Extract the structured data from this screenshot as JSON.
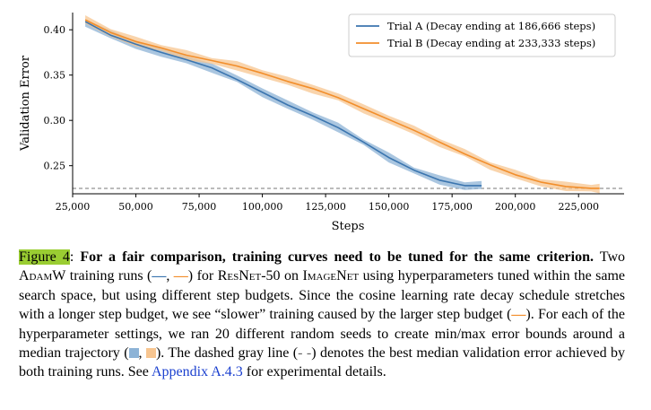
{
  "chart_data": {
    "type": "line",
    "xlabel": "Steps",
    "ylabel": "Validation Error",
    "xlim": [
      25000,
      243000
    ],
    "ylim": [
      0.219,
      0.419
    ],
    "x_ticks": [
      25000,
      50000,
      75000,
      100000,
      125000,
      150000,
      175000,
      200000,
      225000
    ],
    "x_tick_labels": [
      "25,000",
      "50,000",
      "75,000",
      "100,000",
      "125,000",
      "150,000",
      "175,000",
      "200,000",
      "225,000"
    ],
    "y_ticks": [
      0.25,
      0.3,
      0.35,
      0.4
    ],
    "y_tick_labels": [
      "0.25",
      "0.30",
      "0.35",
      "0.40"
    ],
    "grid": false,
    "legend_position": "top-right",
    "reference_line": {
      "y": 0.225,
      "style": "dashed",
      "color": "#777777"
    },
    "series": [
      {
        "name": "Trial A (Decay ending at 186,666 steps)",
        "color": "#3b75af",
        "band_color": "#8db3d6",
        "x": [
          30000,
          40000,
          50000,
          60000,
          70000,
          80000,
          90000,
          100000,
          110000,
          120000,
          130000,
          140000,
          150000,
          160000,
          170000,
          180000,
          186666
        ],
        "y": [
          0.409,
          0.394,
          0.384,
          0.375,
          0.367,
          0.358,
          0.345,
          0.331,
          0.317,
          0.305,
          0.292,
          0.276,
          0.259,
          0.245,
          0.234,
          0.228,
          0.228
        ]
      },
      {
        "name": "Trial B (Decay ending at 233,333 steps)",
        "color": "#f28e2b",
        "band_color": "#f7c590",
        "x": [
          30000,
          40000,
          50000,
          60000,
          70000,
          80000,
          90000,
          100000,
          110000,
          120000,
          130000,
          140000,
          150000,
          160000,
          170000,
          180000,
          190000,
          200000,
          210000,
          220000,
          230000,
          233333
        ],
        "y": [
          0.411,
          0.397,
          0.387,
          0.38,
          0.372,
          0.366,
          0.36,
          0.352,
          0.343,
          0.335,
          0.325,
          0.313,
          0.301,
          0.289,
          0.276,
          0.263,
          0.251,
          0.24,
          0.232,
          0.227,
          0.225,
          0.225
        ]
      }
    ]
  },
  "caption": {
    "figure_label": "Figure 4",
    "colon": ":",
    "bold_text": "For a fair comparison, training curves need to be tuned for the same criterion.",
    "t1": "Two",
    "adamw": "AdamW",
    "t2": "training runs (",
    "dash": "—",
    "comma": ",",
    "t3": ") for",
    "resnet": "ResNet",
    "t4": "-50 on",
    "imagenet": "ImageNet",
    "t5": "using hyperparameters tuned within the same search space, but using different step budgets. Since the cosine learning rate decay schedule stretches with a longer step budget, we see “slower” training caused by the larger step budget (",
    "t6": "). For each of the hyperparameter settings, we ran 20 different random seeds to create min/max error bounds around a median trajectory (",
    "t7": "). The dashed gray line (",
    "dashed_symbol": "- -",
    "t8": ") denotes the best median validation error achieved by both training runs. See",
    "link": "Appendix A.4.3",
    "t9": "for experimental details."
  }
}
